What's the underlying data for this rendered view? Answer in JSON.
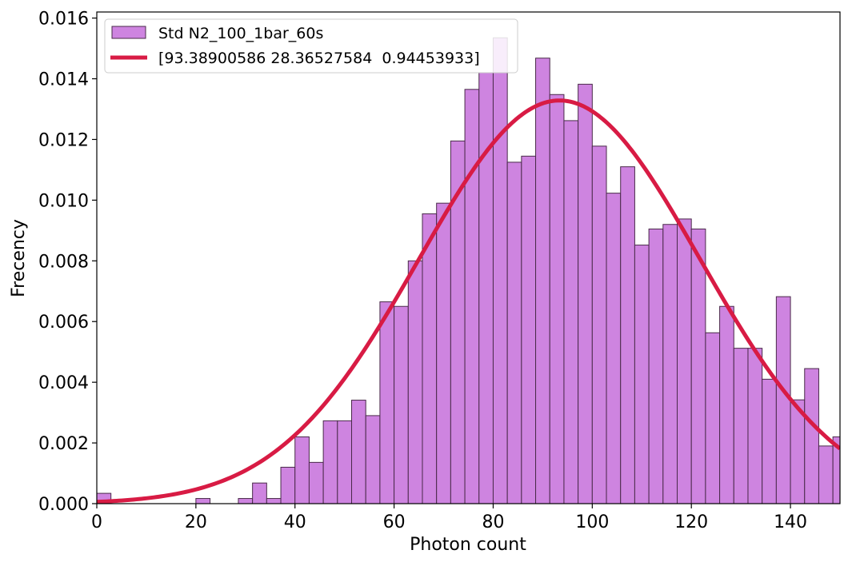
{
  "chart_data": {
    "type": "bar",
    "title": "",
    "xlabel": "Photon count",
    "ylabel": "Frecency",
    "xlim": [
      0,
      150
    ],
    "ylim": [
      0,
      0.0162
    ],
    "x_ticks": [
      "0",
      "20",
      "40",
      "60",
      "80",
      "100",
      "120",
      "140"
    ],
    "x_tick_values": [
      0,
      20,
      40,
      60,
      80,
      100,
      120,
      140
    ],
    "y_ticks": [
      "0.000",
      "0.002",
      "0.004",
      "0.006",
      "0.008",
      "0.010",
      "0.012",
      "0.014",
      "0.016"
    ],
    "y_tick_values": [
      0,
      0.002,
      0.004,
      0.006,
      0.008,
      0.01,
      0.012,
      0.014,
      0.016
    ],
    "grid": false,
    "legend_position": "top-left",
    "histogram": {
      "name": "Std N2_100_1bar_60s",
      "color": "#ce84e0",
      "edge_color": "#4a2a4a",
      "bin_width": 2.857,
      "bin_starts": [
        0,
        2.857,
        5.714,
        8.571,
        11.429,
        14.286,
        17.143,
        20,
        22.857,
        25.714,
        28.571,
        31.429,
        34.286,
        37.143,
        40,
        42.857,
        45.714,
        48.571,
        51.429,
        54.286,
        57.143,
        60,
        62.857,
        65.714,
        68.571,
        71.429,
        74.286,
        77.143,
        80,
        82.857,
        85.714,
        88.571,
        91.429,
        94.286,
        97.143,
        100,
        102.857,
        105.714,
        108.571,
        111.429,
        114.286,
        117.143,
        120,
        122.857,
        125.714,
        128.571,
        131.429,
        134.286,
        137.143,
        140,
        142.857,
        145.714,
        148.571
      ],
      "values": [
        0.00034,
        0,
        0,
        0,
        0,
        0,
        0,
        0.00017,
        0,
        0,
        0.00017,
        0.00068,
        0.00017,
        0.0012,
        0.0022,
        0.00136,
        0.00273,
        0.00273,
        0.00341,
        0.0029,
        0.00665,
        0.0065,
        0.008,
        0.00955,
        0.0099,
        0.01195,
        0.01365,
        0.0142,
        0.01535,
        0.01125,
        0.01145,
        0.01468,
        0.01348,
        0.01262,
        0.01382,
        0.01178,
        0.01023,
        0.0111,
        0.00852,
        0.00905,
        0.0092,
        0.00938,
        0.00905,
        0.00563,
        0.0065,
        0.00512,
        0.00512,
        0.0041,
        0.00682,
        0.00342,
        0.00445,
        0.0019,
        0.0022
      ]
    },
    "fit": {
      "name": "[93.38900586 28.36527584  0.94453933]",
      "color": "#d81b44",
      "mu": 93.38900586,
      "sigma": 28.36527584,
      "amplitude": 0.94453933
    }
  }
}
